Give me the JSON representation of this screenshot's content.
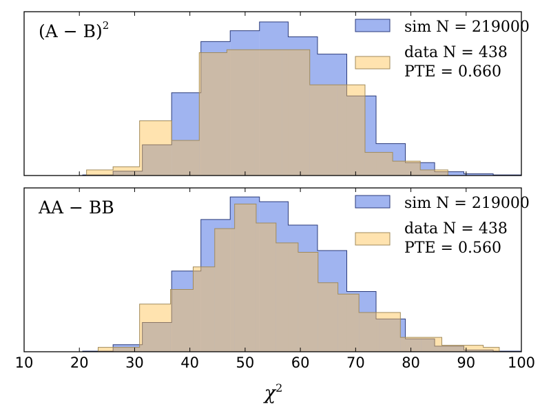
{
  "chart_data": [
    {
      "type": "histogram",
      "title": "(A − B)",
      "title_sup": "2",
      "xlabel": "χ",
      "xlabel_sup": "2",
      "xlim": [
        10,
        100
      ],
      "ylim": [
        0,
        0.056
      ],
      "legend_position": "top-right",
      "series": [
        {
          "name": "sim N = 219000",
          "label_lines": [
            "sim N = 219000"
          ],
          "color": "#4169e1",
          "edges": [
            12.0,
            16.2,
            20.6,
            26.1,
            31.4,
            36.7,
            42.0,
            47.3,
            52.6,
            57.8,
            63.1,
            68.4,
            73.7,
            79.0,
            84.3,
            89.6,
            94.9,
            100.0
          ],
          "values": [
            0.0,
            0.0,
            0.0002,
            0.0015,
            0.0105,
            0.0283,
            0.0458,
            0.0495,
            0.0525,
            0.0474,
            0.0415,
            0.0272,
            0.0109,
            0.0044,
            0.0013,
            0.0006,
            0.0002
          ]
        },
        {
          "name": "data N = 438, PTE = 0.660",
          "label_lines": [
            "data N = 438",
            "PTE = 0.660"
          ],
          "color": "#ffc04d",
          "edges": [
            21.3,
            26.1,
            30.9,
            36.7,
            41.7,
            46.7,
            51.7,
            56.7,
            61.7,
            66.7,
            71.7,
            76.7,
            81.7,
            86.7
          ],
          "values": [
            0.0019,
            0.003,
            0.0187,
            0.012,
            0.042,
            0.043,
            0.043,
            0.043,
            0.031,
            0.031,
            0.0079,
            0.0049,
            0.0019
          ]
        }
      ]
    },
    {
      "type": "histogram",
      "title": "AA − BB",
      "title_sup": "",
      "xlabel": "χ",
      "xlabel_sup": "2",
      "xlim": [
        10,
        100
      ],
      "ylim": [
        0,
        0.056
      ],
      "xticks": [
        10,
        20,
        30,
        40,
        50,
        60,
        70,
        80,
        90,
        100
      ],
      "legend_position": "top-right",
      "series": [
        {
          "name": "sim N = 219000",
          "label_lines": [
            "sim N = 219000"
          ],
          "color": "#4169e1",
          "edges": [
            12.0,
            16.2,
            20.6,
            26.1,
            31.4,
            36.7,
            42.0,
            47.3,
            52.6,
            57.8,
            63.1,
            68.4,
            73.7,
            79.0,
            84.3,
            89.6,
            94.9,
            100.0
          ],
          "values": [
            0.0,
            0.0,
            0.0002,
            0.0024,
            0.01,
            0.0276,
            0.0452,
            0.0529,
            0.0513,
            0.0433,
            0.0346,
            0.0206,
            0.0112,
            0.0044,
            0.0019,
            0.0006,
            0.0002
          ]
        },
        {
          "name": "data N = 438, PTE = 0.560",
          "label_lines": [
            "data N = 438",
            "PTE = 0.560"
          ],
          "color": "#ffc04d",
          "edges": [
            23.4,
            27.0,
            30.9,
            36.5,
            40.6,
            44.5,
            48.1,
            52.0,
            55.6,
            59.6,
            63.2,
            66.8,
            70.6,
            74.4,
            78.1,
            81.9,
            85.6,
            89.4,
            93.1,
            96.0
          ],
          "values": [
            0.0015,
            0.0015,
            0.0163,
            0.0213,
            0.029,
            0.0421,
            0.0505,
            0.044,
            0.0372,
            0.034,
            0.0236,
            0.0197,
            0.0134,
            0.0134,
            0.0049,
            0.0049,
            0.0022,
            0.0022,
            0.0015
          ]
        }
      ]
    }
  ]
}
